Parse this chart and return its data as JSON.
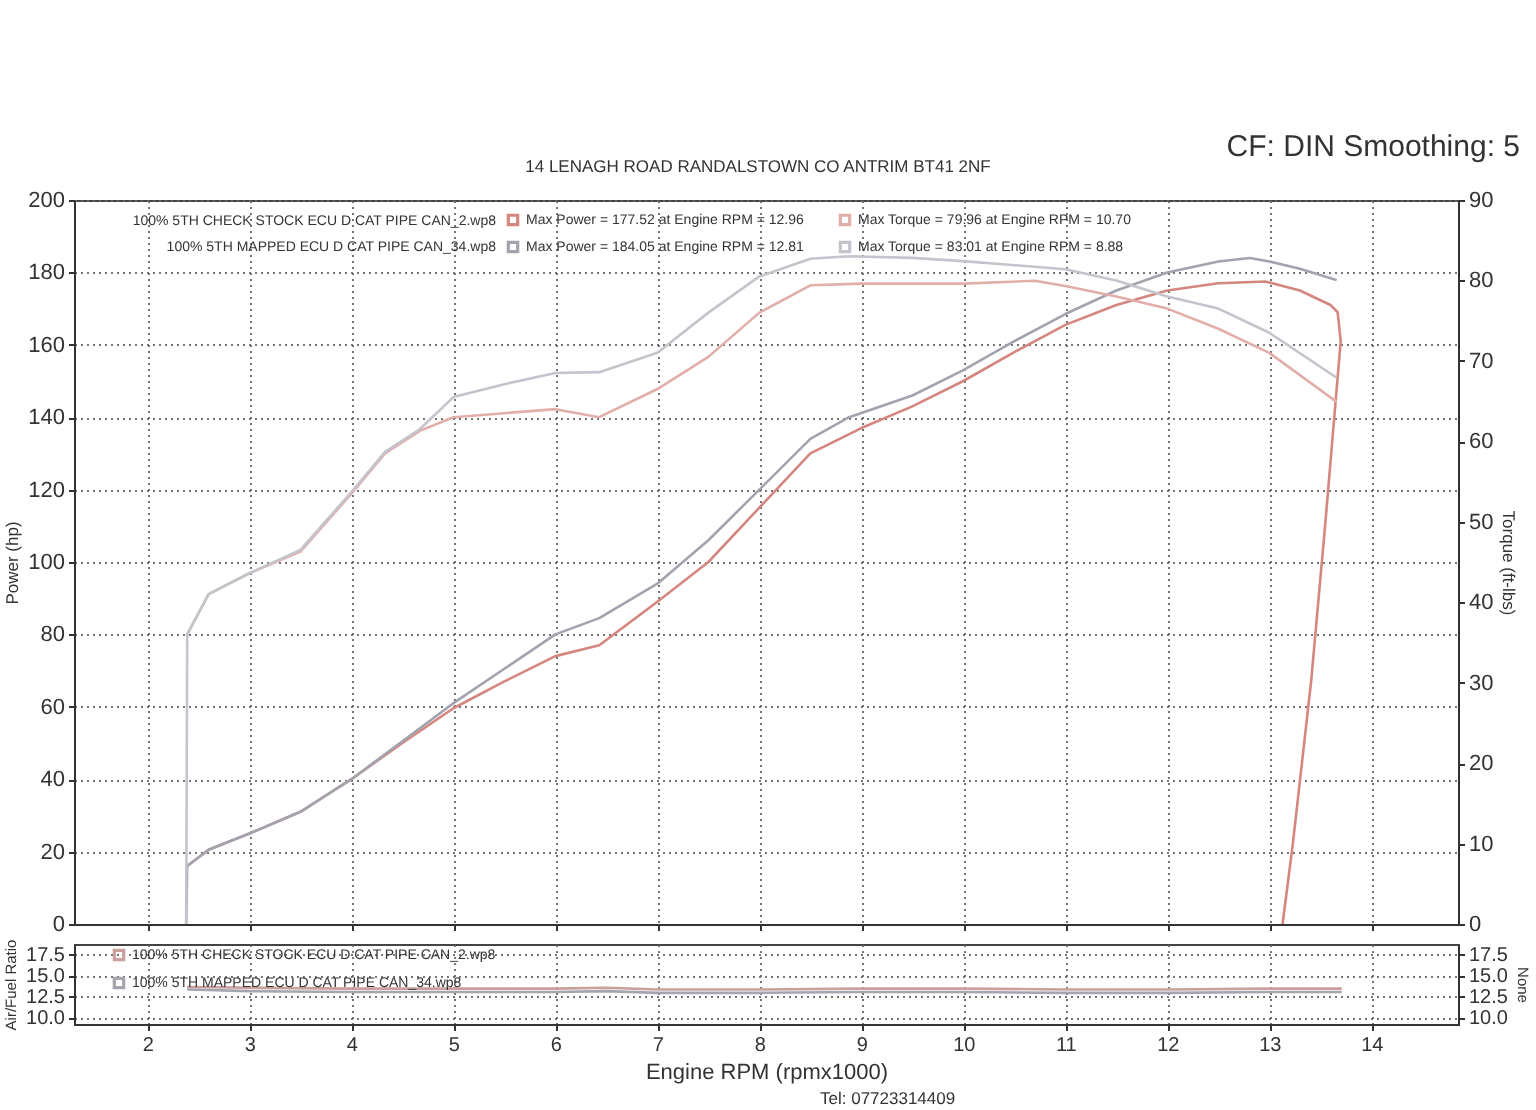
{
  "chart_data": [
    {
      "type": "line",
      "subtitle": "14 LENAGH ROAD RANDALSTOWN CO ANTRIM BT41 2NF",
      "ylabel": "Power (hp)",
      "y2label": "Torque (ft-lbs)",
      "annotations": [
        "CF: DIN Smoothing: 5",
        "100% 5TH CHECK STOCK ECU D CAT PIPE CAN_2.wp8",
        "100% 5TH MAPPED ECU D CAT PIPE CAN_34.wp8"
      ],
      "xlim": [
        1.28,
        14.85
      ],
      "xticks": [
        2,
        3,
        4,
        5,
        6,
        7,
        8,
        9,
        10,
        11,
        12,
        13,
        14
      ],
      "ylim": [
        0,
        200
      ],
      "yticks": [
        0,
        20,
        40,
        60,
        80,
        100,
        120,
        140,
        160,
        180,
        200
      ],
      "y2lim": [
        0,
        90
      ],
      "y2ticks": [
        0,
        10,
        20,
        30,
        40,
        50,
        60,
        70,
        80,
        90
      ],
      "tick_labels": "y",
      "grid": true,
      "legend": "top",
      "series": [
        {
          "name": "Max Power = 177.52 at Engine RPM = 12.96",
          "color": "#d4867f",
          "x": [
            2.39,
            2.6,
            3.0,
            3.5,
            4.0,
            4.5,
            5.0,
            5.5,
            6.0,
            6.43,
            7.0,
            7.5,
            8.0,
            8.5,
            9.0,
            9.5,
            10.0,
            10.5,
            11.0,
            11.5,
            12.0,
            12.5,
            12.96,
            13.3,
            13.6,
            13.67,
            13.7,
            13.55,
            13.41,
            13.23,
            13.13
          ],
          "values": [
            16,
            20.5,
            25,
            31,
            40,
            50,
            59.6,
            67,
            74,
            77,
            89,
            100,
            115,
            130,
            137,
            143,
            150,
            158,
            165.5,
            171,
            175,
            177,
            177.5,
            175,
            171,
            169,
            161,
            111,
            67,
            22,
            0
          ]
        },
        {
          "name": "Max Torque = 79.96 at Engine RPM = 10.70",
          "axis": "y2",
          "color": "#e2aeaa",
          "x": [
            2.39,
            2.6,
            3.0,
            3.5,
            4.0,
            4.33,
            4.67,
            5.0,
            5.5,
            6.0,
            6.43,
            7.0,
            7.5,
            8.0,
            8.5,
            9.0,
            10.0,
            10.7,
            11.0,
            11.5,
            12.0,
            12.5,
            13.0,
            13.65
          ],
          "values": [
            36,
            41,
            43.6,
            46.3,
            53.5,
            58.5,
            61.3,
            63,
            63.5,
            64,
            63,
            66.5,
            70.5,
            76,
            79.4,
            79.6,
            79.6,
            79.96,
            79.3,
            78,
            76.5,
            74,
            71,
            65
          ]
        },
        {
          "name": "Max Power = 184.05 at Engine RPM = 12.81",
          "color": "#a3a3b0",
          "x": [
            2.38,
            2.39,
            2.6,
            3.0,
            3.5,
            4.0,
            4.5,
            5.0,
            5.5,
            6.0,
            6.43,
            7.0,
            7.5,
            8.0,
            8.5,
            8.88,
            9.5,
            10.0,
            10.5,
            11.0,
            11.5,
            12.0,
            12.5,
            12.81,
            13.0,
            13.3,
            13.65
          ],
          "values": [
            0,
            16,
            20.5,
            25,
            31,
            40,
            50.5,
            61,
            70.5,
            80,
            84.5,
            94,
            106,
            120,
            134,
            140,
            146,
            153,
            161,
            168.5,
            175,
            180,
            183,
            184,
            183,
            181,
            178
          ]
        },
        {
          "name": "Max Torque = 83.01 at Engine RPM = 8.88",
          "axis": "y2",
          "color": "#c4c4cc",
          "x": [
            2.38,
            2.39,
            2.6,
            3.0,
            3.5,
            4.0,
            4.33,
            4.67,
            5.0,
            5.5,
            6.0,
            6.43,
            7.0,
            7.5,
            8.0,
            8.5,
            8.88,
            9.5,
            10.0,
            11.0,
            11.5,
            12.0,
            12.5,
            13.0,
            13.65
          ],
          "values": [
            0,
            36,
            41,
            43.6,
            46.5,
            53.7,
            58.7,
            61.5,
            65.5,
            67.1,
            68.5,
            68.6,
            71,
            76,
            80.5,
            82.7,
            83,
            82.8,
            82.4,
            81.4,
            80,
            78,
            76.5,
            73.5,
            68
          ]
        }
      ]
    },
    {
      "type": "line",
      "xlabel": "Engine RPM (rpmx1000)",
      "ylabel": "Air/Fuel Ratio",
      "y2label": "None",
      "annotations": [
        "Tel: 07723314409"
      ],
      "xlim": [
        1.28,
        14.85
      ],
      "xticks": [
        2,
        3,
        4,
        5,
        6,
        7,
        8,
        9,
        10,
        11,
        12,
        13,
        14
      ],
      "ylim": [
        9.2,
        18.7
      ],
      "yticks": [
        {
          "value": 10,
          "label": "10.0"
        },
        12.5,
        {
          "value": 15,
          "label": "15.0"
        },
        17.5
      ],
      "y2lim": [
        9.2,
        18.7
      ],
      "y2ticks": [
        {
          "value": 10,
          "label": "10.0"
        },
        12.5,
        {
          "value": 15,
          "label": "15.0"
        },
        17.5
      ],
      "grid": true,
      "legend": "top left",
      "series": [
        {
          "name": "100% 5TH CHECK STOCK ECU D CAT PIPE CAN_2.wp8",
          "color": "#c9a09c",
          "x": [
            2.4,
            3,
            4,
            5,
            6,
            6.5,
            7,
            8,
            9,
            10,
            11,
            12,
            13,
            13.7
          ],
          "values": [
            13.6,
            13.5,
            13.4,
            13.4,
            13.4,
            13.5,
            13.3,
            13.3,
            13.4,
            13.4,
            13.3,
            13.3,
            13.4,
            13.4
          ]
        },
        {
          "name": "100% 5TH MAPPED ECU D CAT PIPE CAN_34.wp8",
          "axis": "y2",
          "color": "#a5a5b0",
          "x": [
            2.4,
            3,
            4,
            5,
            6,
            6.5,
            7,
            8,
            9,
            10,
            11,
            12,
            13,
            13.7
          ],
          "values": [
            13.3,
            13.1,
            13.0,
            13.0,
            13.0,
            13.1,
            12.9,
            12.9,
            13.0,
            13.0,
            12.9,
            12.9,
            13.0,
            13.0
          ]
        }
      ]
    }
  ]
}
